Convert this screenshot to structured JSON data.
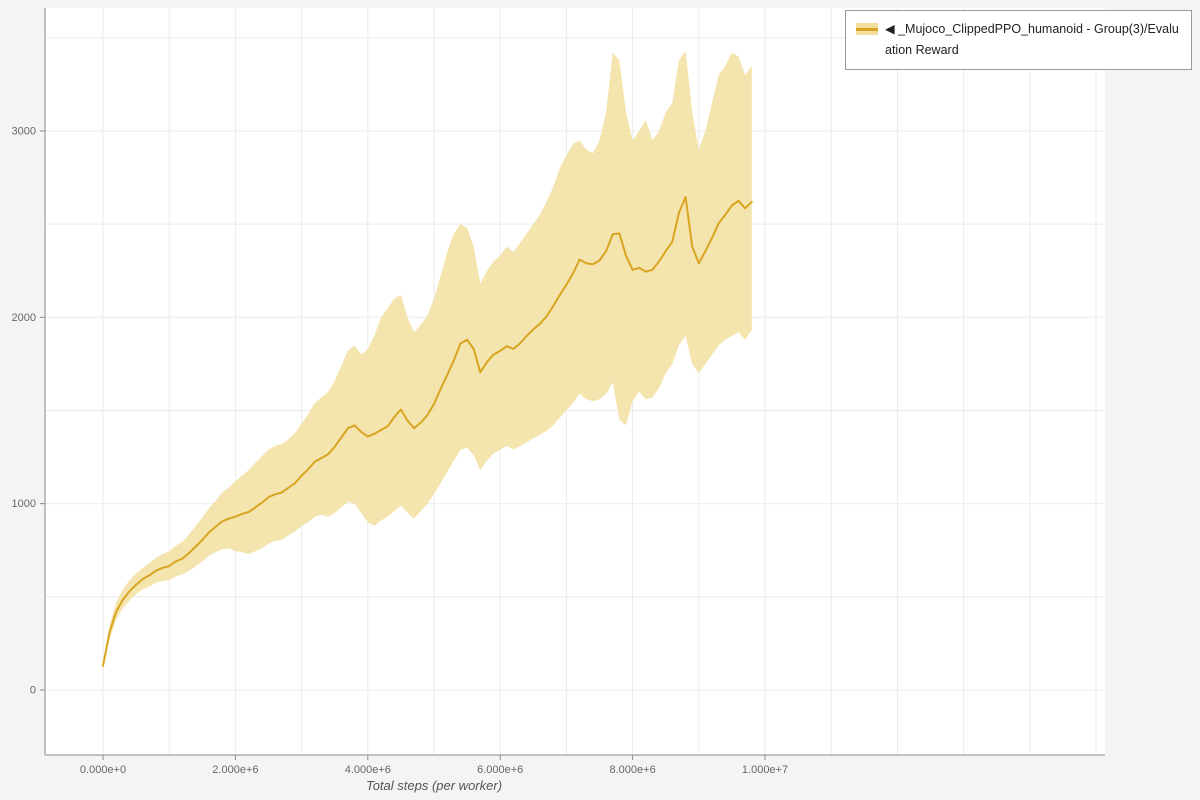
{
  "page": {
    "background": "#f4f4f3",
    "plot_background": "#ffffff"
  },
  "legend": {
    "label": "◀ _Mujoco_ClippedPPO_humanoid - Group(3)/Evaluation Reward",
    "series_color": "#d9a521",
    "band_color": "#f2dfa0"
  },
  "axes": {
    "x_label": "Total steps (per worker)",
    "x_ticks": [
      {
        "value": 0,
        "label": "0.000e+0"
      },
      {
        "value": 2000000,
        "label": "2.000e+6"
      },
      {
        "value": 4000000,
        "label": "4.000e+6"
      },
      {
        "value": 6000000,
        "label": "6.000e+6"
      },
      {
        "value": 8000000,
        "label": "8.000e+6"
      },
      {
        "value": 10000000,
        "label": "1.000e+7"
      }
    ],
    "y_ticks": [
      {
        "value": 0,
        "label": "0"
      },
      {
        "value": 1000,
        "label": "1000"
      },
      {
        "value": 2000,
        "label": "2000"
      },
      {
        "value": 3000,
        "label": "3000"
      }
    ]
  },
  "chart_data": {
    "type": "line",
    "title": "",
    "xlabel": "Total steps (per worker)",
    "ylabel": "",
    "x_unit": "environment steps (x values listed in millions)",
    "x_range": [
      0,
      11000000
    ],
    "y_range": [
      -350,
      3660
    ],
    "grid": true,
    "legend_position": "top-right",
    "series": [
      {
        "name": "_Mujoco_ClippedPPO_humanoid - Group(3)/Evaluation Reward",
        "color": "#d9a521",
        "band_color": "#f2dfa0",
        "x_millions": [
          0.0,
          0.1,
          0.2,
          0.3,
          0.4,
          0.5,
          0.6,
          0.7,
          0.8,
          0.9,
          1.0,
          1.1,
          1.2,
          1.3,
          1.4,
          1.5,
          1.6,
          1.7,
          1.8,
          1.9,
          2.0,
          2.1,
          2.2,
          2.3,
          2.4,
          2.5,
          2.6,
          2.7,
          2.8,
          2.9,
          3.0,
          3.1,
          3.2,
          3.3,
          3.4,
          3.5,
          3.6,
          3.7,
          3.8,
          3.9,
          4.0,
          4.1,
          4.2,
          4.3,
          4.4,
          4.5,
          4.6,
          4.7,
          4.8,
          4.9,
          5.0,
          5.1,
          5.2,
          5.3,
          5.4,
          5.5,
          5.6,
          5.7,
          5.8,
          5.9,
          6.0,
          6.1,
          6.2,
          6.3,
          6.4,
          6.5,
          6.6,
          6.7,
          6.8,
          6.9,
          7.0,
          7.1,
          7.2,
          7.3,
          7.4,
          7.5,
          7.6,
          7.7,
          7.8,
          7.9,
          8.0,
          8.1,
          8.2,
          8.3,
          8.4,
          8.5,
          8.6,
          8.7,
          8.8,
          8.9,
          9.0,
          9.1,
          9.2,
          9.3,
          9.4,
          9.5,
          9.6,
          9.7,
          9.8
        ],
        "mean": [
          130,
          310,
          420,
          485,
          530,
          565,
          595,
          615,
          640,
          655,
          665,
          690,
          705,
          735,
          770,
          805,
          845,
          875,
          905,
          920,
          930,
          945,
          955,
          980,
          1005,
          1035,
          1050,
          1060,
          1085,
          1110,
          1150,
          1185,
          1225,
          1245,
          1265,
          1305,
          1355,
          1405,
          1420,
          1385,
          1360,
          1375,
          1395,
          1415,
          1465,
          1505,
          1445,
          1405,
          1435,
          1475,
          1535,
          1615,
          1690,
          1770,
          1860,
          1880,
          1830,
          1705,
          1760,
          1800,
          1820,
          1845,
          1830,
          1860,
          1900,
          1935,
          1965,
          2005,
          2060,
          2120,
          2175,
          2235,
          2310,
          2290,
          2285,
          2305,
          2355,
          2445,
          2450,
          2330,
          2255,
          2265,
          2245,
          2255,
          2300,
          2355,
          2405,
          2560,
          2645,
          2380,
          2290,
          2355,
          2425,
          2505,
          2550,
          2600,
          2625,
          2585,
          2620
        ],
        "band_lower": [
          110,
          270,
          380,
          440,
          480,
          515,
          540,
          555,
          575,
          585,
          590,
          610,
          620,
          640,
          665,
          690,
          720,
          740,
          755,
          760,
          745,
          740,
          730,
          745,
          760,
          785,
          800,
          805,
          830,
          850,
          880,
          900,
          930,
          940,
          930,
          950,
          980,
          1010,
          1000,
          950,
          900,
          880,
          910,
          930,
          960,
          990,
          950,
          920,
          960,
          1000,
          1050,
          1110,
          1170,
          1230,
          1290,
          1300,
          1260,
          1180,
          1230,
          1270,
          1290,
          1310,
          1290,
          1310,
          1330,
          1350,
          1370,
          1390,
          1420,
          1460,
          1500,
          1540,
          1590,
          1560,
          1550,
          1560,
          1590,
          1650,
          1450,
          1420,
          1550,
          1600,
          1560,
          1570,
          1620,
          1700,
          1750,
          1850,
          1900,
          1750,
          1700,
          1750,
          1800,
          1850,
          1880,
          1900,
          1920,
          1880,
          1930
        ],
        "band_upper": [
          150,
          350,
          470,
          540,
          590,
          625,
          655,
          680,
          710,
          730,
          745,
          775,
          795,
          835,
          880,
          925,
          975,
          1015,
          1060,
          1085,
          1120,
          1150,
          1180,
          1220,
          1255,
          1290,
          1310,
          1320,
          1345,
          1380,
          1430,
          1480,
          1540,
          1570,
          1600,
          1660,
          1740,
          1820,
          1850,
          1800,
          1830,
          1900,
          2000,
          2050,
          2100,
          2120,
          2000,
          1920,
          1960,
          2010,
          2100,
          2220,
          2350,
          2450,
          2500,
          2480,
          2380,
          2180,
          2250,
          2300,
          2330,
          2380,
          2350,
          2400,
          2450,
          2500,
          2550,
          2620,
          2700,
          2800,
          2870,
          2930,
          2950,
          2900,
          2880,
          2950,
          3100,
          3420,
          3380,
          3100,
          2950,
          3000,
          3060,
          2950,
          3000,
          3100,
          3150,
          3380,
          3430,
          3100,
          2900,
          3000,
          3150,
          3300,
          3350,
          3420,
          3400,
          3300,
          3350
        ]
      }
    ]
  }
}
